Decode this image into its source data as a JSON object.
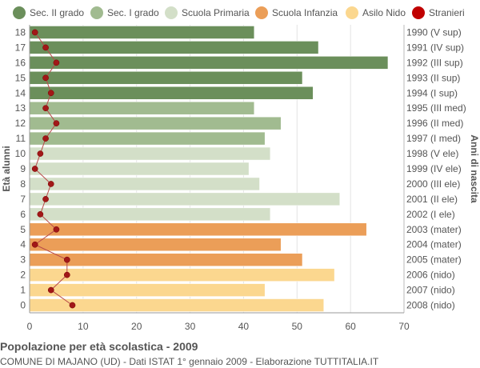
{
  "legend": [
    {
      "label": "Sec. II grado",
      "color": "#6b8f5b"
    },
    {
      "label": "Sec. I grado",
      "color": "#a1bb90"
    },
    {
      "label": "Scuola Primaria",
      "color": "#d3dfc8"
    },
    {
      "label": "Scuola Infanzia",
      "color": "#eb9e58"
    },
    {
      "label": "Asilo Nido",
      "color": "#fbd78f"
    },
    {
      "label": "Stranieri",
      "color": "#c00000"
    }
  ],
  "footer": {
    "title": "Popolazione per età scolastica - 2009",
    "subtitle": "COMUNE DI MAJANO (UD) - Dati ISTAT 1° gennaio 2009 - Elaborazione TUTTITALIA.IT"
  },
  "chart_data": {
    "type": "bar",
    "orientation": "horizontal",
    "ylabel": "Età alunni",
    "ylabel_right": "Anni di nascita",
    "xlim": [
      0,
      70
    ],
    "xticks": [
      0,
      10,
      20,
      30,
      40,
      50,
      60,
      70
    ],
    "grid": true,
    "legend_position": "top",
    "categories": [
      "18",
      "17",
      "16",
      "15",
      "14",
      "13",
      "12",
      "11",
      "10",
      "9",
      "8",
      "7",
      "6",
      "5",
      "4",
      "3",
      "2",
      "1",
      "0"
    ],
    "birth_years": [
      "1990 (V sup)",
      "1991 (IV sup)",
      "1992 (III sup)",
      "1993 (II sup)",
      "1994 (I sup)",
      "1995 (III med)",
      "1996 (II med)",
      "1997 (I med)",
      "1998 (V ele)",
      "1999 (IV ele)",
      "2000 (III ele)",
      "2001 (II ele)",
      "2002 (I ele)",
      "2003 (mater)",
      "2004 (mater)",
      "2005 (mater)",
      "2006 (nido)",
      "2007 (nido)",
      "2008 (nido)"
    ],
    "values": [
      42,
      54,
      67,
      51,
      53,
      42,
      47,
      44,
      45,
      41,
      43,
      58,
      45,
      63,
      47,
      51,
      57,
      44,
      55
    ],
    "school_level": [
      "Sec. II grado",
      "Sec. II grado",
      "Sec. II grado",
      "Sec. II grado",
      "Sec. II grado",
      "Sec. I grado",
      "Sec. I grado",
      "Sec. I grado",
      "Scuola Primaria",
      "Scuola Primaria",
      "Scuola Primaria",
      "Scuola Primaria",
      "Scuola Primaria",
      "Scuola Infanzia",
      "Scuola Infanzia",
      "Scuola Infanzia",
      "Asilo Nido",
      "Asilo Nido",
      "Asilo Nido"
    ],
    "series": [
      {
        "name": "Stranieri",
        "values": [
          1,
          3,
          5,
          3,
          4,
          3,
          5,
          3,
          2,
          1,
          4,
          3,
          2,
          5,
          1,
          7,
          7,
          4,
          8
        ]
      }
    ]
  }
}
